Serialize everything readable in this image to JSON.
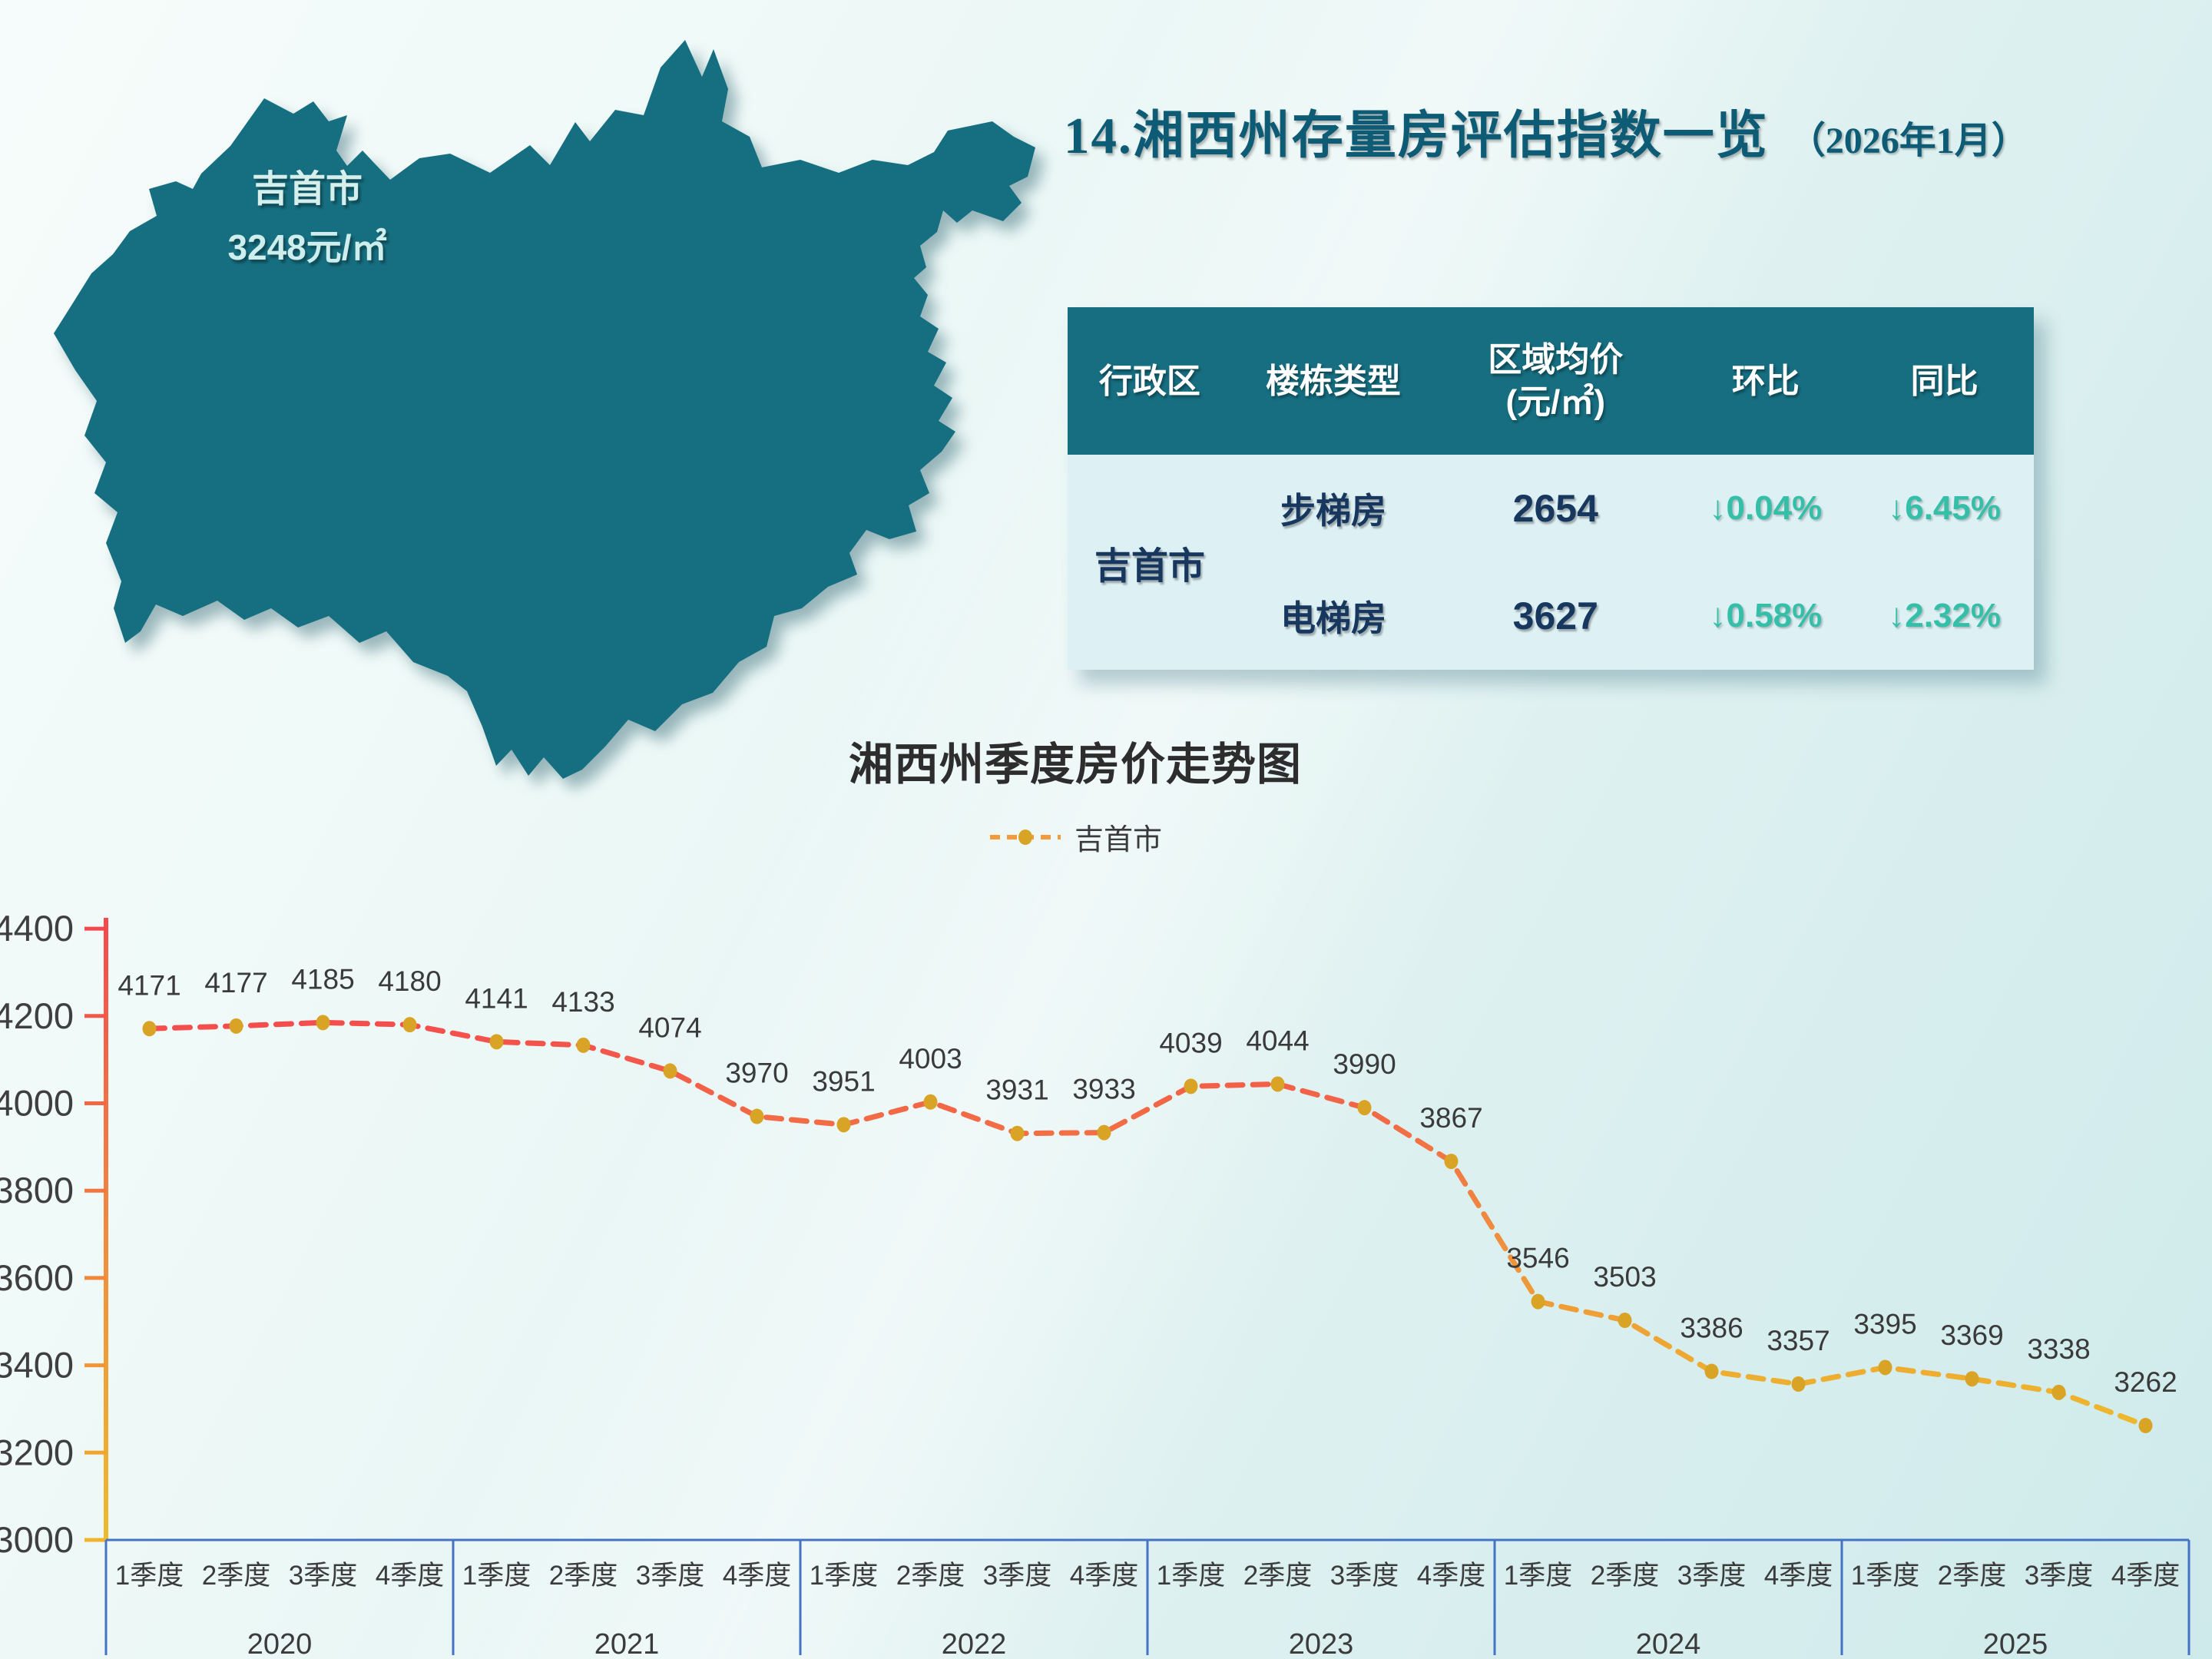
{
  "page": {
    "title": "14.湘西州存量房评估指数一览",
    "title_suffix": "（2026年1月）"
  },
  "map": {
    "region_label": "吉首市",
    "price_label": "3248元/㎡",
    "fill_color": "#166f81"
  },
  "table": {
    "headers": [
      "行政区",
      "楼栋类型",
      "区域均价",
      "环比",
      "同比"
    ],
    "price_unit_line": "(元/㎡)",
    "district": "吉首市",
    "rows": [
      {
        "type": "步梯房",
        "price": "2654",
        "mom": "↓0.04%",
        "yoy": "↓6.45%"
      },
      {
        "type": "电梯房",
        "price": "3627",
        "mom": "↓0.58%",
        "yoy": "↓2.32%"
      }
    ],
    "header_bg": "#166e80",
    "body_bg": "#ddf0f4",
    "down_color": "#35bfa8",
    "value_color": "#17375e"
  },
  "chart_data": {
    "type": "line",
    "title": "湘西州季度房价走势图",
    "legend": "吉首市",
    "series_name": "吉首市",
    "years": [
      "2020",
      "2021",
      "2022",
      "2023",
      "2024",
      "2025"
    ],
    "quarter_labels": [
      "1季度",
      "2季度",
      "3季度",
      "4季度"
    ],
    "values": [
      4171,
      4177,
      4185,
      4180,
      4141,
      4133,
      4074,
      3970,
      3951,
      4003,
      3931,
      3933,
      4039,
      4044,
      3990,
      3867,
      3546,
      3503,
      3386,
      3357,
      3395,
      3369,
      3338,
      3262
    ],
    "ylim": [
      3000,
      4400
    ],
    "ytick_step": 200,
    "grid": false,
    "legend_position": "top-center",
    "line_color_top": "#f4484e",
    "line_color_mid": "#f08a3e",
    "line_color_bottom": "#edbb2b",
    "marker_color": "#d9a425",
    "axis_blue": "#4472c4",
    "legend_line_color": "#f59a3a"
  }
}
